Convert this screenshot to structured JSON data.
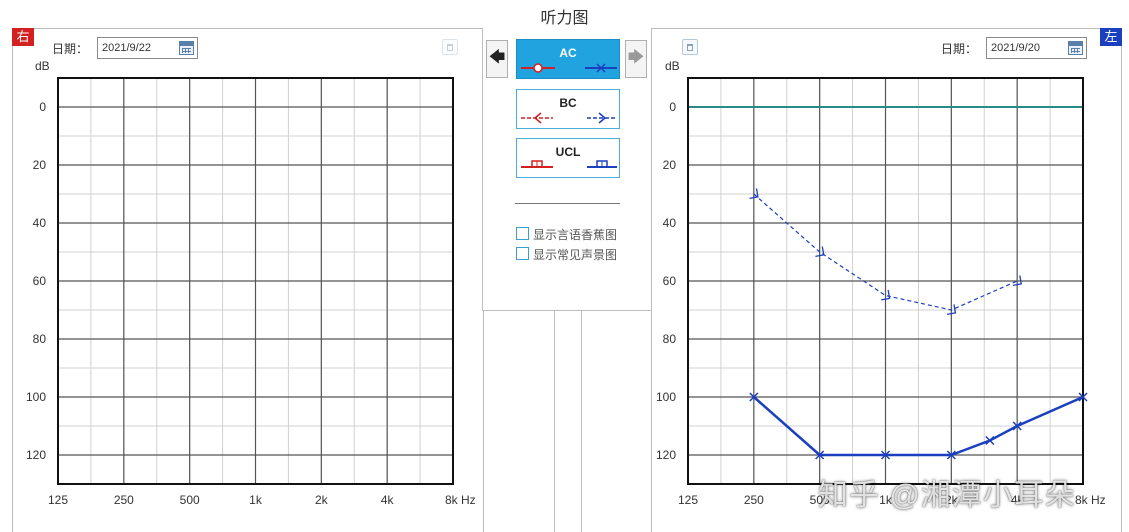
{
  "app_title": "听力图",
  "right_ear": {
    "badge": "右",
    "date_label": "日期：",
    "date_value": "2021/9/22",
    "unit": "dB"
  },
  "left_ear": {
    "badge": "左",
    "date_label": "日期：",
    "date_value": "2021/9/20",
    "unit": "dB"
  },
  "modes": [
    {
      "label": "AC",
      "active": true
    },
    {
      "label": "BC",
      "active": false
    },
    {
      "label": "UCL",
      "active": false
    }
  ],
  "options": [
    {
      "label": "显示言语香蕉图",
      "checked": false
    },
    {
      "label": "显示常见声景图",
      "checked": false
    }
  ],
  "colors": {
    "right": "#d32020",
    "left": "#1a3fbf",
    "accent": "#21a3e0",
    "zero_line": "#2a8a8a"
  },
  "watermark": "知乎 @湘潭小耳朵",
  "chart_data": [
    {
      "type": "line",
      "ear": "right",
      "x_ticks": [
        "125",
        "250",
        "500",
        "1k",
        "2k",
        "4k",
        "8k Hz"
      ],
      "y_ticks": [
        "0",
        "20",
        "40",
        "60",
        "80",
        "100",
        "120"
      ],
      "ylabel": "dB",
      "ylim": [
        -10,
        130
      ],
      "y_inverted": true,
      "grid": true,
      "series": []
    },
    {
      "type": "line",
      "ear": "left",
      "x_ticks": [
        "125",
        "250",
        "500",
        "1k",
        "2k",
        "4k",
        "8k Hz"
      ],
      "y_ticks": [
        "0",
        "20",
        "40",
        "60",
        "80",
        "100",
        "120"
      ],
      "ylabel": "dB",
      "ylim": [
        -10,
        130
      ],
      "y_inverted": true,
      "grid": true,
      "series": [
        {
          "kind": "AC",
          "style": "solid",
          "marker": "x",
          "x": [
            250,
            500,
            1000,
            2000,
            3000,
            4000,
            8000
          ],
          "y": [
            100,
            120,
            120,
            120,
            115,
            110,
            100
          ]
        },
        {
          "kind": "BC",
          "style": "dashed",
          "marker": "arrow",
          "x": [
            250,
            500,
            1000,
            2000,
            4000
          ],
          "y": [
            30,
            50,
            65,
            70,
            60
          ]
        }
      ]
    }
  ]
}
